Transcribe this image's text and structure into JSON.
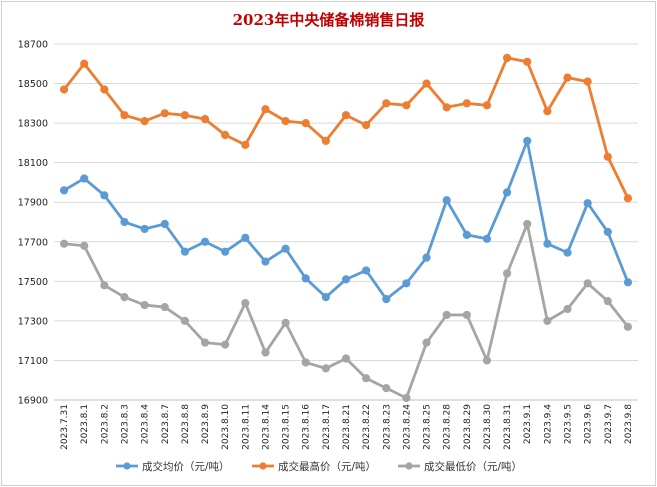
{
  "title": "2023年中央储备棉销售日报",
  "chart_data": {
    "type": "line",
    "title": "2023年中央储备棉销售日报",
    "xlabel": "",
    "ylabel": "",
    "ylim": [
      16900,
      18700
    ],
    "yticks": [
      16900,
      17100,
      17300,
      17500,
      17700,
      17900,
      18100,
      18300,
      18500,
      18700
    ],
    "grid": true,
    "legend_position": "bottom",
    "categories": [
      "2023.7.31",
      "2023.8.1",
      "2023.8.2",
      "2023.8.3",
      "2023.8.4",
      "2023.8.7",
      "2023.8.8",
      "2023.8.9",
      "2023.8.10",
      "2023.8.11",
      "2023.8.14",
      "2023.8.15",
      "2023.8.16",
      "2023.8.17",
      "2023.8.21",
      "2023.8.22",
      "2023.8.23",
      "2023.8.24",
      "2023.8.25",
      "2023.8.28",
      "2023.8.29",
      "2023.8.30",
      "2023.8.31",
      "2023.9.1",
      "2023.9.4",
      "2023.9.5",
      "2023.9.6",
      "2023.9.7",
      "2023.9.8"
    ],
    "series": [
      {
        "name": "成交均价（元/吨）",
        "color": "#5b9bd5",
        "values": [
          17960,
          18020,
          17935,
          17800,
          17765,
          17790,
          17650,
          17700,
          17650,
          17720,
          17600,
          17665,
          17515,
          17420,
          17510,
          17555,
          17410,
          17490,
          17620,
          17910,
          17735,
          17715,
          17950,
          18210,
          17690,
          17645,
          17895,
          17750,
          17495
        ]
      },
      {
        "name": "成交最高价（元/吨）",
        "color": "#ed7d31",
        "values": [
          18470,
          18600,
          18470,
          18340,
          18310,
          18350,
          18340,
          18320,
          18240,
          18190,
          18370,
          18310,
          18300,
          18210,
          18340,
          18290,
          18400,
          18390,
          18500,
          18380,
          18400,
          18390,
          18630,
          18610,
          18360,
          18530,
          18510,
          18130,
          17920
        ]
      },
      {
        "name": "成交最低价（元/吨）",
        "color": "#a5a5a5",
        "values": [
          17690,
          17680,
          17480,
          17420,
          17380,
          17370,
          17300,
          17190,
          17180,
          17390,
          17140,
          17290,
          17090,
          17060,
          17110,
          17010,
          16960,
          16910,
          17190,
          17330,
          17330,
          17100,
          17540,
          17790,
          17300,
          17360,
          17490,
          17400,
          17270
        ]
      }
    ]
  }
}
